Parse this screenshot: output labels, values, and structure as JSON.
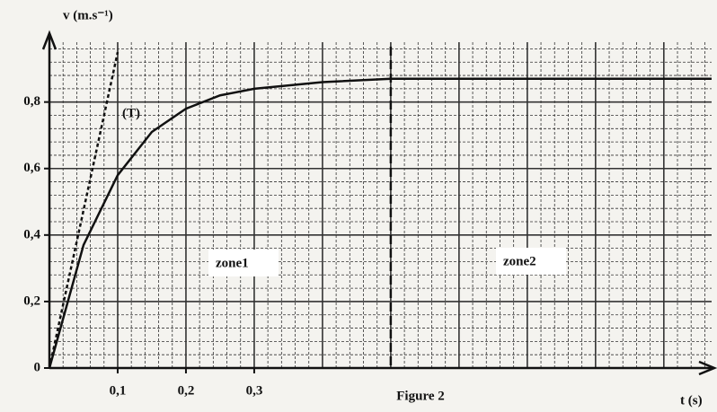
{
  "chart_data": {
    "type": "line",
    "y_label": "v (m.s⁻¹)",
    "x_label": "t (s)",
    "caption": "Figure 2",
    "tangent_label": "(T)",
    "zone_labels": [
      "zone1",
      "zone2"
    ],
    "x": [
      0,
      0.05,
      0.1,
      0.15,
      0.2,
      0.25,
      0.3,
      0.4,
      0.5,
      0.6,
      0.7,
      0.8,
      0.9,
      0.97
    ],
    "series": [
      {
        "name": "v",
        "color": "#111111",
        "values": [
          0,
          0.37,
          0.58,
          0.71,
          0.78,
          0.82,
          0.84,
          0.86,
          0.87,
          0.87,
          0.87,
          0.87,
          0.87,
          0.87
        ]
      }
    ],
    "tangent": {
      "x": [
        0,
        0.1
      ],
      "values": [
        0,
        0.95
      ],
      "color": "#111111"
    },
    "zone_boundary": 0.5,
    "xlim": [
      0,
      0.97
    ],
    "ylim": [
      0,
      0.98
    ],
    "xticks": [
      {
        "value": 0.1,
        "label": "0,1"
      },
      {
        "value": 0.2,
        "label": "0,2"
      },
      {
        "value": 0.3,
        "label": "0,3"
      }
    ],
    "yticks": [
      0,
      {
        "value": 0.2,
        "label": "0,2"
      },
      {
        "value": 0.4,
        "label": "0,4"
      },
      {
        "value": 0.6,
        "label": "0,6"
      },
      {
        "value": 0.8,
        "label": "0,8"
      }
    ],
    "grid": true,
    "minor_grid": 5
  }
}
